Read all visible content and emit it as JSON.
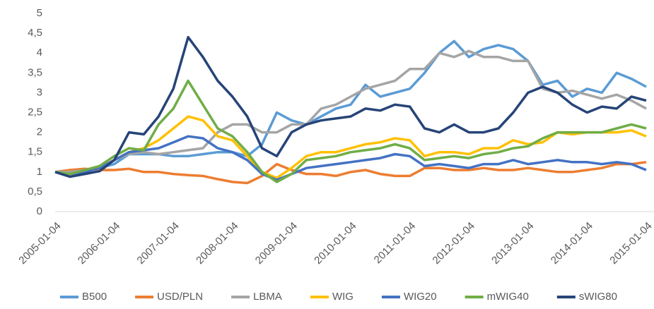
{
  "chart_data": {
    "type": "line",
    "categories": [
      "2005-01-04",
      null,
      null,
      null,
      "2006-01-04",
      null,
      null,
      null,
      "2007-01-04",
      null,
      null,
      null,
      "2008-01-04",
      null,
      null,
      null,
      "2009-01-04",
      null,
      null,
      null,
      "2010-01-04",
      null,
      null,
      null,
      "2011-01-04",
      null,
      null,
      null,
      "2012-01-04",
      null,
      null,
      null,
      "2013-01-04",
      null,
      null,
      null,
      "2014-01-04",
      null,
      null,
      null,
      "2015-01-04"
    ],
    "series": [
      {
        "name": "B500",
        "color": "#5b9bd5",
        "values": [
          1.0,
          1.0,
          1.05,
          1.1,
          1.2,
          1.45,
          1.45,
          1.45,
          1.4,
          1.4,
          1.45,
          1.5,
          1.5,
          1.4,
          1.7,
          2.5,
          2.3,
          2.2,
          2.4,
          2.6,
          2.7,
          3.2,
          2.9,
          3.0,
          3.1,
          3.5,
          4.0,
          4.3,
          3.9,
          4.1,
          4.2,
          4.1,
          3.8,
          3.2,
          3.3,
          2.9,
          3.1,
          3.0,
          3.5,
          3.35,
          3.15
        ]
      },
      {
        "name": "USD/PLN",
        "color": "#ed7d31",
        "values": [
          1.0,
          1.05,
          1.08,
          1.05,
          1.05,
          1.08,
          1.0,
          1.0,
          0.95,
          0.92,
          0.9,
          0.82,
          0.75,
          0.72,
          0.9,
          1.2,
          1.05,
          0.95,
          0.95,
          0.9,
          1.0,
          1.05,
          0.95,
          0.9,
          0.9,
          1.1,
          1.1,
          1.05,
          1.05,
          1.1,
          1.05,
          1.05,
          1.1,
          1.05,
          1.0,
          1.0,
          1.05,
          1.1,
          1.2,
          1.2,
          1.25
        ]
      },
      {
        "name": "LBMA",
        "color": "#a5a5a5",
        "values": [
          1.0,
          1.0,
          1.05,
          1.1,
          1.3,
          1.45,
          1.5,
          1.45,
          1.5,
          1.55,
          1.6,
          2.0,
          2.2,
          2.2,
          2.0,
          2.0,
          2.2,
          2.2,
          2.6,
          2.7,
          2.9,
          3.1,
          3.2,
          3.3,
          3.6,
          3.6,
          4.0,
          3.9,
          4.05,
          3.9,
          3.9,
          3.8,
          3.8,
          3.1,
          3.0,
          3.05,
          2.95,
          2.85,
          2.95,
          2.8,
          2.6
        ]
      },
      {
        "name": "WIG",
        "color": "#ffc000",
        "values": [
          1.0,
          0.95,
          1.0,
          1.1,
          1.3,
          1.5,
          1.6,
          1.8,
          2.1,
          2.4,
          2.3,
          1.9,
          1.8,
          1.4,
          1.0,
          0.85,
          1.1,
          1.4,
          1.5,
          1.5,
          1.6,
          1.7,
          1.75,
          1.85,
          1.8,
          1.4,
          1.5,
          1.5,
          1.45,
          1.6,
          1.6,
          1.8,
          1.7,
          1.75,
          2.0,
          1.95,
          2.0,
          2.0,
          2.0,
          2.05,
          1.9
        ]
      },
      {
        "name": "WIG20",
        "color": "#4472c4",
        "values": [
          1.0,
          0.95,
          1.0,
          1.1,
          1.3,
          1.5,
          1.55,
          1.6,
          1.75,
          1.9,
          1.85,
          1.6,
          1.5,
          1.3,
          0.95,
          0.8,
          0.95,
          1.1,
          1.15,
          1.2,
          1.25,
          1.3,
          1.35,
          1.45,
          1.4,
          1.15,
          1.2,
          1.15,
          1.1,
          1.2,
          1.2,
          1.3,
          1.2,
          1.25,
          1.3,
          1.25,
          1.25,
          1.2,
          1.25,
          1.2,
          1.05
        ]
      },
      {
        "name": "mWIG40",
        "color": "#70ad47",
        "values": [
          1.0,
          0.95,
          1.05,
          1.15,
          1.4,
          1.6,
          1.55,
          2.2,
          2.6,
          3.3,
          2.7,
          2.1,
          1.9,
          1.5,
          1.0,
          0.75,
          0.95,
          1.3,
          1.35,
          1.4,
          1.5,
          1.55,
          1.6,
          1.7,
          1.6,
          1.3,
          1.35,
          1.4,
          1.35,
          1.45,
          1.5,
          1.6,
          1.65,
          1.85,
          2.0,
          2.0,
          2.0,
          2.0,
          2.1,
          2.2,
          2.1
        ]
      },
      {
        "name": "sWIG80",
        "color": "#264478",
        "values": [
          1.0,
          0.88,
          0.95,
          1.02,
          1.3,
          2.0,
          1.95,
          2.4,
          3.1,
          4.4,
          3.9,
          3.3,
          2.9,
          2.4,
          1.6,
          1.4,
          2.0,
          2.2,
          2.3,
          2.35,
          2.4,
          2.6,
          2.55,
          2.7,
          2.65,
          2.1,
          2.0,
          2.2,
          2.0,
          2.0,
          2.1,
          2.5,
          3.0,
          3.15,
          3.0,
          2.7,
          2.5,
          2.65,
          2.6,
          2.9,
          2.8
        ]
      }
    ],
    "ylim": [
      0,
      5
    ],
    "yticks": [
      0,
      {
        "value": 0.5,
        "label": "0,5"
      },
      1,
      {
        "value": 1.5,
        "label": "1,5"
      },
      2,
      {
        "value": 2.5,
        "label": "2,5"
      },
      3,
      {
        "value": 3.5,
        "label": "3,5"
      },
      4,
      {
        "value": 4.5,
        "label": "4,5"
      },
      5
    ],
    "grid": false,
    "legend": "bottom"
  }
}
